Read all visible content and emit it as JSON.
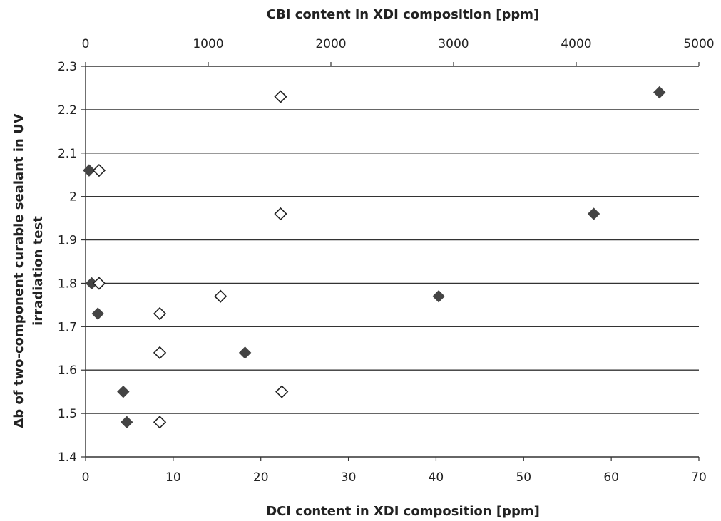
{
  "chart_data": {
    "type": "scatter",
    "title": "",
    "top_xlabel": "CBI content in XDI composition [ppm]",
    "xlabel": "DCI content in XDI composition [ppm]",
    "ylabel_lines": [
      "Δb of two-component curable sealant in UV",
      "irradiation test"
    ],
    "xlim": [
      0,
      70
    ],
    "top_xlim": [
      0,
      5000
    ],
    "ylim": [
      1.4,
      2.3
    ],
    "x_ticks": [
      "0",
      "10",
      "20",
      "30",
      "40",
      "50",
      "60",
      "70"
    ],
    "top_x_ticks": [
      "0",
      "1000",
      "2000",
      "3000",
      "4000",
      "5000"
    ],
    "y_ticks": [
      "1.4",
      "1.5",
      "1.6",
      "1.7",
      "1.8",
      "1.9",
      "2",
      "2.1",
      "2.2",
      "2.3"
    ],
    "grid": true,
    "series": [
      {
        "marker": "filled-diamond",
        "axis": "bottom",
        "color": "#444444",
        "points": [
          {
            "x": 0.4,
            "y": 2.06
          },
          {
            "x": 0.7,
            "y": 1.8
          },
          {
            "x": 1.4,
            "y": 1.73
          },
          {
            "x": 4.3,
            "y": 1.55
          },
          {
            "x": 4.7,
            "y": 1.48
          },
          {
            "x": 18.2,
            "y": 1.64
          },
          {
            "x": 40.3,
            "y": 1.77
          },
          {
            "x": 58.0,
            "y": 1.96
          },
          {
            "x": 65.5,
            "y": 2.24
          }
        ]
      },
      {
        "marker": "open-diamond",
        "axis": "top",
        "color": "#222222",
        "points": [
          {
            "x": 110,
            "y": 2.06
          },
          {
            "x": 110,
            "y": 1.8
          },
          {
            "x": 605,
            "y": 1.73
          },
          {
            "x": 605,
            "y": 1.64
          },
          {
            "x": 605,
            "y": 1.48
          },
          {
            "x": 1100,
            "y": 1.77
          },
          {
            "x": 1590,
            "y": 2.23
          },
          {
            "x": 1590,
            "y": 1.96
          },
          {
            "x": 1600,
            "y": 1.55
          }
        ]
      }
    ]
  }
}
